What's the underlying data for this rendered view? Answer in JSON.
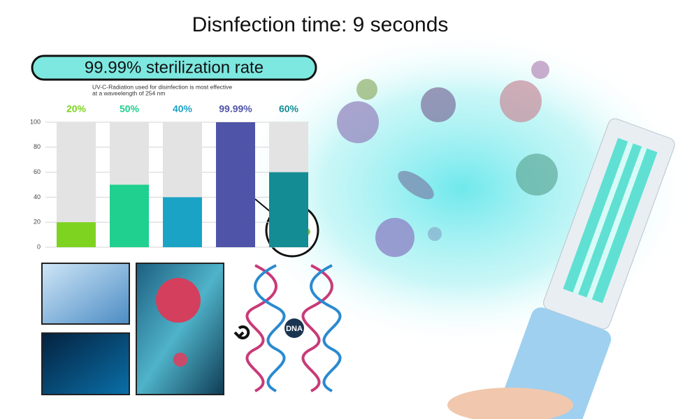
{
  "title": "Disnfection time: 9 seconds",
  "badge": "99.99% sterilization rate",
  "dna_label": "DNA",
  "chart_data": {
    "type": "bar",
    "subtitle": [
      "UV-C-Radiation used for disinfection is most effective",
      "at a waveelength of 254 nm"
    ],
    "categories": [
      null,
      null,
      null,
      null,
      null
    ],
    "values": [
      20,
      50,
      40,
      99.99,
      60
    ],
    "value_labels": [
      "20%",
      "50%",
      "40%",
      "99.99%",
      "60%"
    ],
    "colors": [
      "#7ed321",
      "#1fd08f",
      "#1ba3c6",
      "#4f54a8",
      "#138c94"
    ],
    "ylim": [
      0,
      100
    ],
    "yticks": [
      0,
      20,
      40,
      60,
      80,
      100
    ],
    "grid": true
  }
}
